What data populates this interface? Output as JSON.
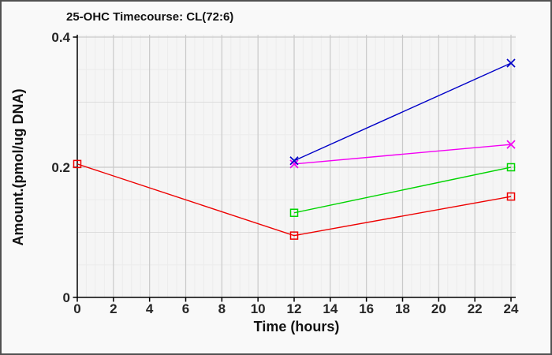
{
  "frame": {
    "background": "#f9f9f9",
    "border_color": "#515151",
    "plot_background": "#f5f5f5"
  },
  "chart_data": {
    "type": "line",
    "title": "25-OHC Timecourse: CL(72:6)",
    "xlabel": "Time (hours)",
    "ylabel": "Amount.(pmol/ug DNA)",
    "xlim": [
      0,
      24
    ],
    "ylim": [
      0,
      0.4
    ],
    "x_major_ticks": [
      0,
      2,
      4,
      6,
      8,
      10,
      12,
      14,
      16,
      18,
      20,
      22,
      24
    ],
    "x_tick_labels": [
      "0",
      "2",
      "4",
      "6",
      "8",
      "10",
      "12",
      "14",
      "16",
      "18",
      "20",
      "22",
      "24"
    ],
    "x_minor_step": 0.5,
    "y_labeled_ticks": [
      {
        "value": 0,
        "label": "0"
      },
      {
        "value": 0.2,
        "label": "0.2"
      },
      {
        "value": 0.4,
        "label": "0.4"
      }
    ],
    "y_minor_step": 0.05,
    "grid": "major+minor",
    "legend_position": "none",
    "axis_color": "#000000",
    "grid_major_color": "#c9c9c9",
    "grid_mid_color": "#dcdcdc",
    "grid_minor_color": "#ececec",
    "series": [
      {
        "name": "red-square-series",
        "color": "#ee0000",
        "marker": "square",
        "points": [
          [
            0,
            0.205
          ],
          [
            12,
            0.095
          ],
          [
            24,
            0.155
          ]
        ]
      },
      {
        "name": "green-square-series",
        "color": "#00d400",
        "marker": "square",
        "points": [
          [
            12,
            0.13
          ],
          [
            24,
            0.2
          ]
        ]
      },
      {
        "name": "magenta-x-series",
        "color": "#f400f4",
        "marker": "x",
        "points": [
          [
            12,
            0.205
          ],
          [
            24,
            0.235
          ]
        ]
      },
      {
        "name": "blue-x-series",
        "color": "#0000c8",
        "marker": "x",
        "points": [
          [
            12,
            0.21
          ],
          [
            24,
            0.36
          ]
        ]
      }
    ]
  }
}
